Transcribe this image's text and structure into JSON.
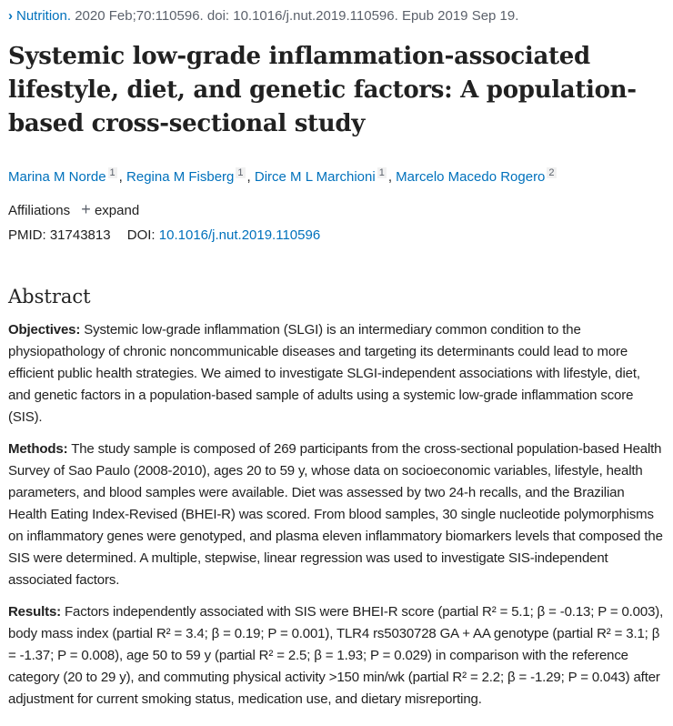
{
  "citation": {
    "journal": "Nutrition.",
    "details": "2020 Feb;70:110596. doi: 10.1016/j.nut.2019.110596. Epub 2019 Sep 19."
  },
  "title": "Systemic low-grade inflammation-associated lifestyle, diet, and genetic factors: A population-based cross-sectional study",
  "authors": [
    {
      "name": "Marina M Norde",
      "aff": "1"
    },
    {
      "name": "Regina M Fisberg",
      "aff": "1"
    },
    {
      "name": "Dirce M L Marchioni",
      "aff": "1"
    },
    {
      "name": "Marcelo Macedo Rogero",
      "aff": "2"
    }
  ],
  "affiliations": {
    "label": "Affiliations",
    "expand": "expand"
  },
  "ids": {
    "pmid_label": "PMID:",
    "pmid": "31743813",
    "doi_label": "DOI:",
    "doi": "10.1016/j.nut.2019.110596"
  },
  "abstract": {
    "heading": "Abstract",
    "sections": [
      {
        "label": "Objectives:",
        "text": "Systemic low-grade inflammation (SLGI) is an intermediary common condition to the physiopathology of chronic noncommunicable diseases and targeting its determinants could lead to more efficient public health strategies. We aimed to investigate SLGI-independent associations with lifestyle, diet, and genetic factors in a population-based sample of adults using a systemic low-grade inflammation score (SIS)."
      },
      {
        "label": "Methods:",
        "text": "The study sample is composed of 269 participants from the cross-sectional population-based Health Survey of Sao Paulo (2008-2010), ages 20 to 59 y, whose data on socioeconomic variables, lifestyle, health parameters, and blood samples were available. Diet was assessed by two 24-h recalls, and the Brazilian Health Eating Index-Revised (BHEI-R) was scored. From blood samples, 30 single nucleotide polymorphisms on inflammatory genes were genotyped, and plasma eleven inflammatory biomarkers levels that composed the SIS were determined. A multiple, stepwise, linear regression was used to investigate SIS-independent associated factors."
      },
      {
        "label": "Results:",
        "text": "Factors independently associated with SIS were BHEI-R score (partial R² = 5.1; β = -0.13; P = 0.003), body mass index (partial R² = 3.4; β = 0.19; P = 0.001), TLR4 rs5030728 GA + AA genotype (partial R² = 3.1; β = -1.37; P = 0.008), age 50 to 59 y (partial R² = 2.5; β = 1.93; P = 0.029) in comparison with the reference category (20 to 29 y), and commuting physical activity >150 min/wk (partial R² = 2.2; β = -1.29; P = 0.043) after adjustment for current smoking status, medication use, and dietary misreporting."
      }
    ]
  }
}
